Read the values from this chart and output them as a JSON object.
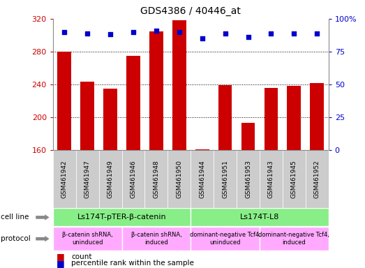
{
  "title": "GDS4386 / 40446_at",
  "samples": [
    "GSM461942",
    "GSM461947",
    "GSM461949",
    "GSM461946",
    "GSM461948",
    "GSM461950",
    "GSM461944",
    "GSM461951",
    "GSM461953",
    "GSM461943",
    "GSM461945",
    "GSM461952"
  ],
  "counts": [
    280,
    243,
    235,
    275,
    305,
    318,
    161,
    239,
    193,
    236,
    238,
    242
  ],
  "percentile_ranks": [
    90,
    89,
    88,
    90,
    91,
    90,
    85,
    89,
    86,
    89,
    89,
    89
  ],
  "ymin": 160,
  "ymax": 320,
  "yticks": [
    160,
    200,
    240,
    280,
    320
  ],
  "yright_ticks": [
    0,
    25,
    50,
    75,
    100
  ],
  "bar_color": "#cc0000",
  "dot_color": "#0000cc",
  "bar_width": 0.6,
  "cell_line_groups": [
    {
      "label": "Ls174T-pTER-β-catenin",
      "start": 0,
      "end": 6,
      "color": "#88ee88"
    },
    {
      "label": "Ls174T-L8",
      "start": 6,
      "end": 12,
      "color": "#88ee88"
    }
  ],
  "protocol_groups": [
    {
      "label": "β-catenin shRNA,\nuninduced",
      "start": 0,
      "end": 3,
      "color": "#ffaaff"
    },
    {
      "label": "β-catenin shRNA,\ninduced",
      "start": 3,
      "end": 6,
      "color": "#ffaaff"
    },
    {
      "label": "dominant-negative Tcf4,\nuninduced",
      "start": 6,
      "end": 9,
      "color": "#ffaaff"
    },
    {
      "label": "dominant-negative Tcf4,\ninduced",
      "start": 9,
      "end": 12,
      "color": "#ffaaff"
    }
  ],
  "legend_count_label": "count",
  "legend_percentile_label": "percentile rank within the sample",
  "cell_line_label": "cell line",
  "protocol_label": "protocol",
  "plot_bg_color": "#ffffff",
  "tick_label_bg": "#cccccc",
  "separator_color": "#888888"
}
